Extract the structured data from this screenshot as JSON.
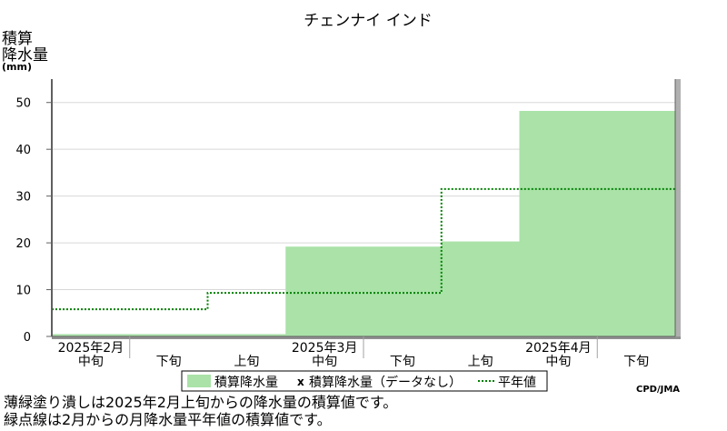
{
  "chart_data": {
    "type": "area",
    "title": "チェンナイ インド",
    "ylabel": [
      "積算",
      "降水量"
    ],
    "yunit": "(mm)",
    "ylim": [
      0,
      55
    ],
    "yticks": [
      0,
      10,
      20,
      30,
      40,
      50
    ],
    "grid": true,
    "x_periods": [
      {
        "sub": "中旬",
        "month": "2025年2月"
      },
      {
        "sub": "下旬",
        "month": ""
      },
      {
        "sub": "上旬",
        "month": ""
      },
      {
        "sub": "中旬",
        "month": "2025年3月"
      },
      {
        "sub": "下旬",
        "month": ""
      },
      {
        "sub": "上旬",
        "month": ""
      },
      {
        "sub": "中旬",
        "month": "2025年4月"
      },
      {
        "sub": "下旬",
        "month": ""
      }
    ],
    "series": [
      {
        "name": "積算降水量",
        "values": [
          0.5,
          0.5,
          0.5,
          19.2,
          19.2,
          20.3,
          48.2,
          48.2
        ],
        "color": "#aae2a8"
      },
      {
        "name": "積算降水量（データなし）",
        "values": [],
        "marker": "x"
      },
      {
        "name": "平年値",
        "values": [
          5.8,
          5.8,
          9.3,
          9.3,
          9.3,
          31.5,
          31.5,
          31.5
        ],
        "color": "#008000",
        "style": "dotted"
      }
    ],
    "legend_position": "bottom",
    "credit": "CPD/JMA",
    "notes": [
      "薄緑塗り潰しは2025年2月上旬からの降水量の積算値です。",
      "緑点線は2月からの月降水量平年値の積算値です。"
    ]
  }
}
